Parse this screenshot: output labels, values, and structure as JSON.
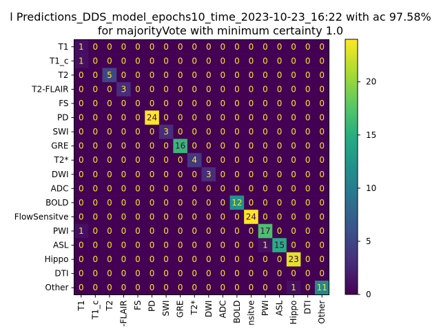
{
  "chart_data": {
    "type": "heatmap",
    "title_line1": "l Predictions_DDS_model_epochs10_time_2023-10-23_16:22 with ac 97.58%",
    "title_line2": "for majorityVote with minimum certainty 1.0",
    "row_labels": [
      "T1",
      "T1_c",
      "T2",
      "T2-FLAIR",
      "FS",
      "PD",
      "SWI",
      "GRE",
      "T2*",
      "DWI",
      "ADC",
      "BOLD",
      "FlowSensitve",
      "PWI",
      "ASL",
      "Hippo",
      "DTI",
      "Other"
    ],
    "col_labels": [
      "T1",
      "T1_c",
      "T2",
      "-FLAIR",
      "FS",
      "PD",
      "SWI",
      "GRE",
      "T2*",
      "DWI",
      "ADC",
      "BOLD",
      "nsitve",
      "PWI",
      "ASL",
      "Hippo",
      "DTI",
      "Other"
    ],
    "matrix": [
      [
        1,
        0,
        0,
        0,
        0,
        0,
        0,
        0,
        0,
        0,
        0,
        0,
        0,
        0,
        0,
        0,
        0,
        0
      ],
      [
        1,
        0,
        0,
        0,
        0,
        0,
        0,
        0,
        0,
        0,
        0,
        0,
        0,
        0,
        0,
        0,
        0,
        0
      ],
      [
        0,
        0,
        5,
        0,
        0,
        0,
        0,
        0,
        0,
        0,
        0,
        0,
        0,
        0,
        0,
        0,
        0,
        0
      ],
      [
        0,
        0,
        0,
        3,
        0,
        0,
        0,
        0,
        0,
        0,
        0,
        0,
        0,
        0,
        0,
        0,
        0,
        0
      ],
      [
        0,
        0,
        0,
        0,
        0,
        0,
        0,
        0,
        0,
        0,
        0,
        0,
        0,
        0,
        0,
        0,
        0,
        0
      ],
      [
        0,
        0,
        0,
        0,
        0,
        24,
        0,
        0,
        0,
        0,
        0,
        0,
        0,
        0,
        0,
        0,
        0,
        0
      ],
      [
        0,
        0,
        0,
        0,
        0,
        0,
        3,
        0,
        0,
        0,
        0,
        0,
        0,
        0,
        0,
        0,
        0,
        0
      ],
      [
        0,
        0,
        0,
        0,
        0,
        0,
        0,
        16,
        0,
        0,
        0,
        0,
        0,
        0,
        0,
        0,
        0,
        0
      ],
      [
        0,
        0,
        0,
        0,
        0,
        0,
        0,
        0,
        4,
        0,
        0,
        0,
        0,
        0,
        0,
        0,
        0,
        0
      ],
      [
        0,
        0,
        0,
        0,
        0,
        0,
        0,
        0,
        0,
        3,
        0,
        0,
        0,
        0,
        0,
        0,
        0,
        0
      ],
      [
        0,
        0,
        0,
        0,
        0,
        0,
        0,
        0,
        0,
        0,
        0,
        0,
        0,
        0,
        0,
        0,
        0,
        0
      ],
      [
        0,
        0,
        0,
        0,
        0,
        0,
        0,
        0,
        0,
        0,
        0,
        12,
        0,
        0,
        0,
        0,
        0,
        0
      ],
      [
        0,
        0,
        0,
        0,
        0,
        0,
        0,
        0,
        0,
        0,
        0,
        0,
        24,
        0,
        0,
        0,
        0,
        0
      ],
      [
        1,
        0,
        0,
        0,
        0,
        0,
        0,
        0,
        0,
        0,
        0,
        0,
        0,
        17,
        0,
        0,
        0,
        0
      ],
      [
        0,
        0,
        0,
        0,
        0,
        0,
        0,
        0,
        0,
        0,
        0,
        0,
        0,
        1,
        15,
        0,
        0,
        0
      ],
      [
        0,
        0,
        0,
        0,
        0,
        0,
        0,
        0,
        0,
        0,
        0,
        0,
        0,
        0,
        0,
        23,
        0,
        0
      ],
      [
        0,
        0,
        0,
        0,
        0,
        0,
        0,
        0,
        0,
        0,
        0,
        0,
        0,
        0,
        0,
        0,
        0,
        0
      ],
      [
        0,
        0,
        0,
        0,
        0,
        0,
        0,
        0,
        0,
        0,
        0,
        0,
        0,
        0,
        0,
        1,
        0,
        11
      ]
    ],
    "colormap": "viridis",
    "value_range": [
      0,
      24
    ],
    "colorbar_ticks": [
      0,
      5,
      10,
      15,
      20
    ]
  }
}
